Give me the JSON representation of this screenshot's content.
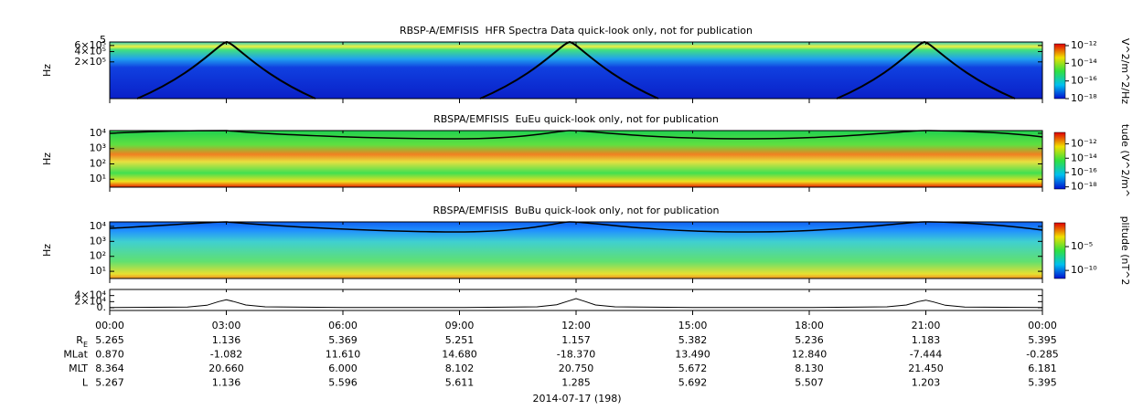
{
  "chart_data": [
    {
      "type": "spectrogram",
      "title": "RBSP-A/EMFISIS  HFR Spectra Data quick-look only, not for publication",
      "ylabel": "Hz",
      "yscale": "log",
      "ylim": [
        17000,
        760000
      ],
      "top_clipped_label": "5",
      "yticks": [
        {
          "value": 600000,
          "label": "6×10⁵"
        },
        {
          "value": 400000,
          "label": "4×10⁵"
        },
        {
          "value": 200000,
          "label": "2×10⁵"
        }
      ],
      "colorbar": {
        "label": "V^2/m^2/Hz",
        "zscale": "log",
        "zlim": [
          1e-18,
          1.6e-12
        ],
        "ticks": [
          {
            "value": 1e-12,
            "label": "10⁻¹²"
          },
          {
            "value": 1e-14,
            "label": "10⁻¹⁴"
          },
          {
            "value": 1e-16,
            "label": "10⁻¹⁶"
          },
          {
            "value": 1e-18,
            "label": "10⁻¹⁸"
          }
        ]
      }
    },
    {
      "type": "spectrogram",
      "title": "RBSPA/EMFISIS  EuEu quick-look only, not for publication",
      "ylabel": "Hz",
      "yscale": "log",
      "ylim": [
        3,
        15000
      ],
      "yticks": [
        {
          "value": 10000,
          "label": "10⁴"
        },
        {
          "value": 1000,
          "label": "10³"
        },
        {
          "value": 100,
          "label": "10²"
        },
        {
          "value": 10,
          "label": "10¹"
        }
      ],
      "colorbar": {
        "label": "tude (V^2/m^",
        "zscale": "log",
        "zlim": [
          5e-19,
          4e-11
        ],
        "ticks": [
          {
            "value": 1e-12,
            "label": "10⁻¹²"
          },
          {
            "value": 1e-14,
            "label": "10⁻¹⁴"
          },
          {
            "value": 1e-16,
            "label": "10⁻¹⁶"
          },
          {
            "value": 1e-18,
            "label": "10⁻¹⁸"
          }
        ]
      }
    },
    {
      "type": "spectrogram",
      "title": "RBSPA/EMFISIS  BuBu quick-look only, not for publication",
      "ylabel": "Hz",
      "yscale": "log",
      "ylim": [
        3.3,
        20000
      ],
      "yticks": [
        {
          "value": 10000,
          "label": "10⁴"
        },
        {
          "value": 1000,
          "label": "10³"
        },
        {
          "value": 100,
          "label": "10²"
        },
        {
          "value": 10,
          "label": "10¹"
        }
      ],
      "colorbar": {
        "label": "plitude (nT^2",
        "zscale": "log",
        "zlim": [
          2e-12,
          1
        ],
        "ticks": [
          {
            "value": 1e-05,
            "label": "10⁻⁵"
          },
          {
            "value": 1e-10,
            "label": "10⁻¹⁰"
          }
        ]
      }
    },
    {
      "type": "line",
      "yscale": "linear",
      "ylim": [
        -9000,
        60000
      ],
      "color": "#000000",
      "yticks": [
        {
          "value": 40000,
          "label": "4×10⁴"
        },
        {
          "value": 20000,
          "label": "2×10⁴"
        },
        {
          "value": 0,
          "label": "0."
        }
      ],
      "x": [
        0,
        2,
        2.5,
        2.8,
        3.0,
        3.2,
        3.5,
        4,
        6,
        9,
        11,
        11.5,
        11.8,
        12.0,
        12.2,
        12.5,
        13,
        15,
        18,
        20,
        20.5,
        20.8,
        21.0,
        21.2,
        21.5,
        22,
        24
      ],
      "values": [
        500,
        2500,
        8000,
        20000,
        26000,
        20000,
        9000,
        3000,
        800,
        500,
        3000,
        10000,
        22000,
        30000,
        22000,
        9000,
        3000,
        600,
        500,
        3000,
        9000,
        20000,
        25000,
        19000,
        8000,
        2500,
        600
      ]
    }
  ],
  "x_axis": {
    "xlim": [
      0,
      24
    ],
    "xticks": [
      {
        "value": 0,
        "label": "00:00"
      },
      {
        "value": 3,
        "label": "03:00"
      },
      {
        "value": 6,
        "label": "06:00"
      },
      {
        "value": 9,
        "label": "09:00"
      },
      {
        "value": 12,
        "label": "12:00"
      },
      {
        "value": 15,
        "label": "15:00"
      },
      {
        "value": 18,
        "label": "18:00"
      },
      {
        "value": 21,
        "label": "21:00"
      },
      {
        "value": 24,
        "label": "00:00"
      }
    ],
    "date": "2014-07-17 (198)"
  },
  "ephemeris": [
    {
      "label": "R",
      "sub": "E",
      "values": [
        "5.265",
        "1.136",
        "5.369",
        "5.251",
        "1.157",
        "5.382",
        "5.236",
        "1.183",
        "5.395"
      ]
    },
    {
      "label": "MLat",
      "values": [
        "0.870",
        "-1.082",
        "11.610",
        "14.680",
        "-18.370",
        "13.490",
        "12.840",
        "-7.444",
        "-0.285"
      ]
    },
    {
      "label": "MLT",
      "values": [
        "8.364",
        "20.660",
        "6.000",
        "8.102",
        "20.750",
        "5.672",
        "8.130",
        "21.450",
        "6.181"
      ]
    },
    {
      "label": "L",
      "values": [
        "5.267",
        "1.136",
        "5.596",
        "5.611",
        "1.285",
        "5.692",
        "5.507",
        "1.203",
        "5.395"
      ]
    }
  ]
}
